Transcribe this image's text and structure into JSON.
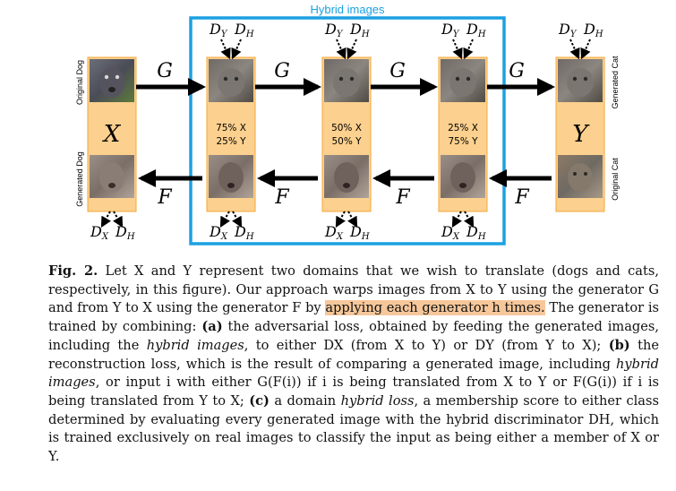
{
  "figure": {
    "hybrid_box_title": "Hybrid images",
    "generators": {
      "forward": "G",
      "backward": "F"
    },
    "domains": {
      "source": "X",
      "target": "Y"
    },
    "column_mixes": [
      {
        "x": "75% X",
        "y": "25% Y"
      },
      {
        "x": "50% X",
        "y": "50% Y"
      },
      {
        "x": "25% X",
        "y": "75% Y"
      }
    ],
    "side_labels": {
      "original_dog": "Original Dog",
      "generated_dog": "Generated Dog",
      "generated_cat": "Generated Cat",
      "original_cat": "Original Cat"
    },
    "discriminators": {
      "top": [
        "DY",
        "DH"
      ],
      "bottom": [
        "DX",
        "DH"
      ]
    },
    "colors": {
      "box_fill": "#fcd08e",
      "box_stroke": "#f4a83a",
      "hybrid_border": "#1ba1e2",
      "highlight": "#f6c79a"
    }
  },
  "caption": {
    "label": "Fig. 2.",
    "parts": [
      " Let X and Y represent two domains that we wish to translate (dogs and cats, respectively, in this figure). Our approach warps images from X to Y using the generator G and from Y to X using the generator F by ",
      "applying each generator h times.",
      " The generator is trained by combining: ",
      "(a)",
      " the adversarial loss, obtained by feeding the generated images, including the ",
      "hybrid images",
      ", to either DX (from X to Y) or DY (from Y to X); ",
      "(b)",
      " the reconstruction loss, which is the result of comparing a generated image, including ",
      "hybrid images",
      ", or input i with either G(F(i)) if i is being translated from X to Y or F(G(i)) if i is being translated from Y to X; ",
      "(c)",
      " a domain ",
      "hybrid loss",
      ", a membership score to either class determined by evaluating every generated image with the hybrid discriminator DH, which is trained exclusively on real images to classify the input as being either a member of X or Y."
    ]
  }
}
